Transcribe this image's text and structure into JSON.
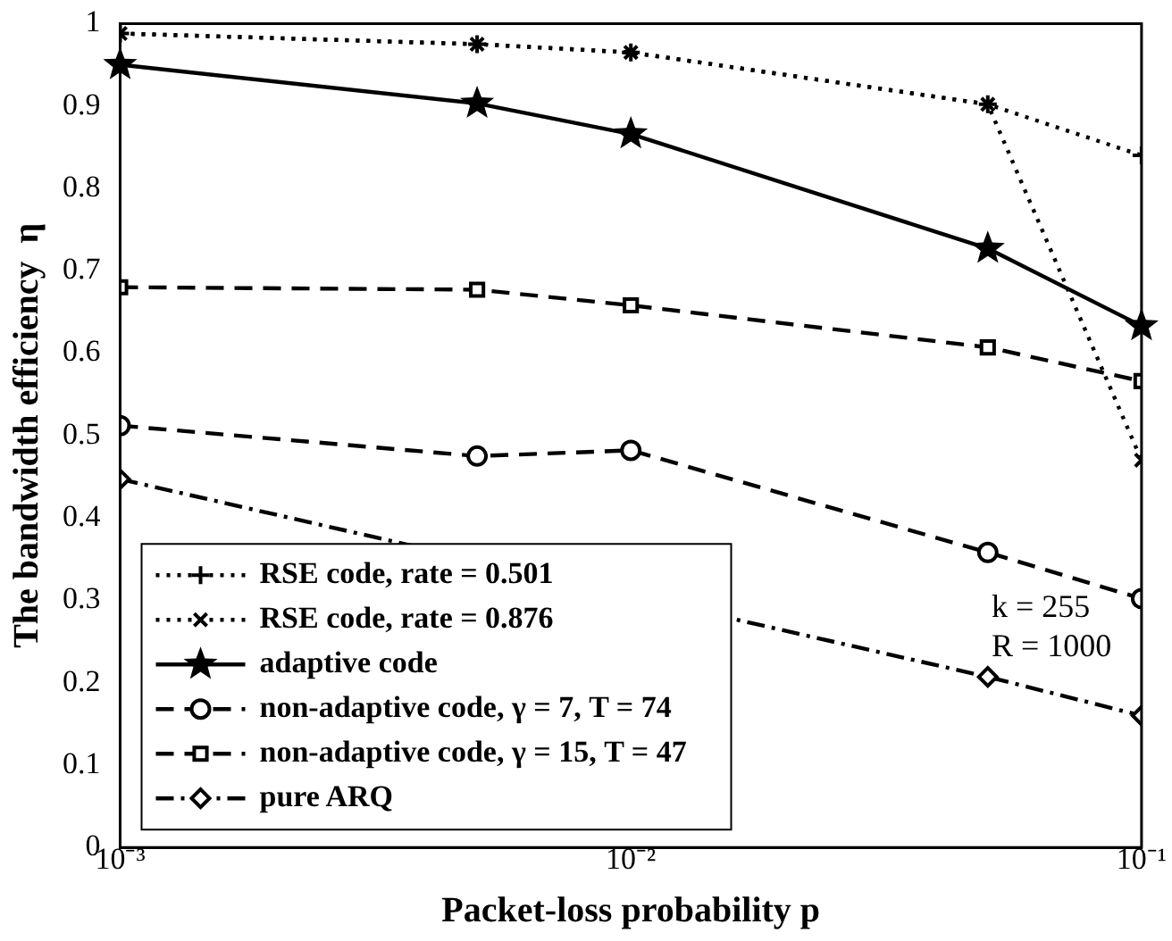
{
  "chart_data": {
    "type": "line",
    "xlabel": "Packet-loss probability p",
    "ylabel": "The bandwidth efficiency  η",
    "x": [
      0.001,
      0.005,
      0.01,
      0.05,
      0.1
    ],
    "log": "x",
    "xlim": [
      0.001,
      0.1
    ],
    "xticks": [
      {
        "value": 0.001,
        "label": "10⁻³"
      },
      {
        "value": 0.01,
        "label": "10⁻²"
      },
      {
        "value": 0.1,
        "label": "10⁻¹"
      }
    ],
    "ylim": [
      0,
      1
    ],
    "yticks": [
      0,
      0.1,
      0.2,
      0.3,
      0.4,
      0.5,
      0.6,
      0.7,
      0.8,
      0.9,
      1
    ],
    "grid": false,
    "legend": "bottom left",
    "series": [
      {
        "name": "RSE code, rate = 0.501",
        "color": "#000000",
        "marker": "cross",
        "line_style": "dotted",
        "values": [
          0.988,
          0.975,
          0.965,
          0.902,
          0.84
        ]
      },
      {
        "name": "RSE code, rate = 0.876",
        "color": "#000000",
        "marker": "x",
        "line_style": "dotted",
        "values": [
          0.988,
          0.975,
          0.965,
          0.902,
          0.47
        ]
      },
      {
        "name": "adaptive code",
        "color": "#000000",
        "marker": "star",
        "line_style": "solid",
        "values": [
          0.95,
          0.903,
          0.866,
          0.727,
          0.633
        ]
      },
      {
        "name": "non-adaptive code, γ = 7, T = 74",
        "color": "#000000",
        "marker": "circle",
        "line_style": "dashed",
        "values": [
          0.512,
          0.475,
          0.482,
          0.358,
          0.302
        ]
      },
      {
        "name": "non-adaptive code, γ = 15, T = 47",
        "color": "#000000",
        "marker": "square",
        "line_style": "dashed",
        "values": [
          0.68,
          0.677,
          0.658,
          0.607,
          0.566
        ]
      },
      {
        "name": "pure ARQ",
        "color": "#000000",
        "marker": "diamond",
        "line_style": "dashdot",
        "values": [
          0.447,
          null,
          null,
          0.207,
          0.16
        ]
      }
    ],
    "annotations": [
      "k = 255",
      "R = 1000"
    ]
  }
}
